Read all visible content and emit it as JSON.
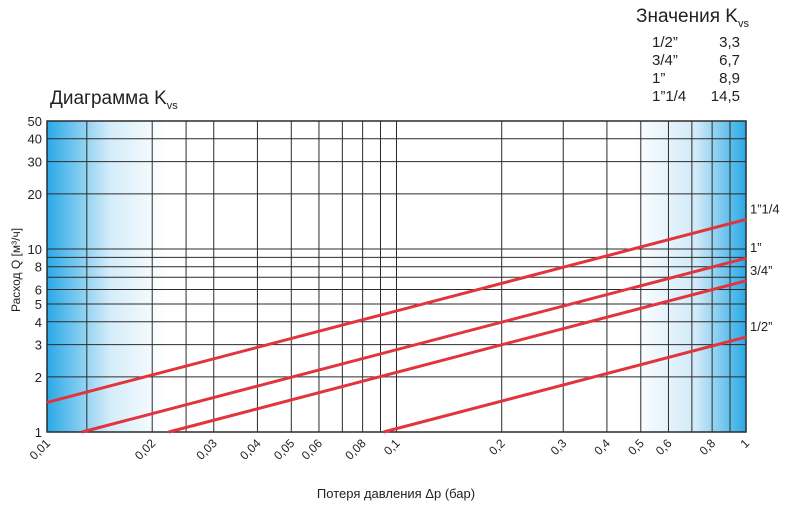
{
  "kvs_table": {
    "title": "Значения K",
    "title_sub": "vs",
    "rows": [
      {
        "size": "1/2”",
        "value": "3,3"
      },
      {
        "size": "3/4”",
        "value": "6,7"
      },
      {
        "size": "1”",
        "value": "8,9"
      },
      {
        "size": "1”1/4",
        "value": "14,5"
      }
    ]
  },
  "chart_data": {
    "type": "line",
    "title": "Диаграмма K",
    "title_sub": "vs",
    "xlabel": "Потеря давления Δp (бар)",
    "ylabel": "Расход Q [м³/ч]",
    "xscale": "log",
    "yscale": "log",
    "xlim": [
      0.01,
      1
    ],
    "ylim": [
      1,
      50
    ],
    "grid": true,
    "x_ticks": [
      {
        "v": 0.01,
        "label": "0,01"
      },
      {
        "v": 0.02,
        "label": "0,02"
      },
      {
        "v": 0.03,
        "label": "0,03"
      },
      {
        "v": 0.04,
        "label": "0,04"
      },
      {
        "v": 0.05,
        "label": "0,05"
      },
      {
        "v": 0.06,
        "label": "0,06"
      },
      {
        "v": 0.08,
        "label": "0,08"
      },
      {
        "v": 0.1,
        "label": "0,1"
      },
      {
        "v": 0.2,
        "label": "0,2"
      },
      {
        "v": 0.3,
        "label": "0,3"
      },
      {
        "v": 0.4,
        "label": "0,4"
      },
      {
        "v": 0.5,
        "label": "0,5"
      },
      {
        "v": 0.6,
        "label": "0,6"
      },
      {
        "v": 0.8,
        "label": "0,8"
      },
      {
        "v": 1,
        "label": "1"
      }
    ],
    "x_grid": [
      0.01,
      0.013,
      0.02,
      0.025,
      0.03,
      0.04,
      0.05,
      0.06,
      0.07,
      0.08,
      0.09,
      0.1,
      0.2,
      0.3,
      0.4,
      0.5,
      0.6,
      0.7,
      0.8,
      0.9,
      1
    ],
    "y_ticks": [
      {
        "v": 1,
        "label": "1"
      },
      {
        "v": 2,
        "label": "2"
      },
      {
        "v": 3,
        "label": "3"
      },
      {
        "v": 4,
        "label": "4"
      },
      {
        "v": 5,
        "label": "5"
      },
      {
        "v": 6,
        "label": "6"
      },
      {
        "v": 8,
        "label": "8"
      },
      {
        "v": 10,
        "label": "10"
      },
      {
        "v": 20,
        "label": "20"
      },
      {
        "v": 30,
        "label": "30"
      },
      {
        "v": 40,
        "label": "40"
      },
      {
        "v": 50,
        "label": "50"
      }
    ],
    "y_grid": [
      1,
      2,
      3,
      4,
      5,
      6,
      7,
      8,
      9,
      10,
      20,
      30,
      40,
      50
    ],
    "series": [
      {
        "name": "1”1/4",
        "kvs": 14.5,
        "points": [
          [
            0.01,
            1.45
          ],
          [
            1,
            14.5
          ]
        ],
        "color": "#e2343d"
      },
      {
        "name": "1”",
        "kvs": 8.9,
        "points": [
          [
            0.0126,
            1
          ],
          [
            1,
            8.9
          ]
        ],
        "color": "#e2343d"
      },
      {
        "name": "3/4”",
        "kvs": 6.7,
        "points": [
          [
            0.0223,
            1
          ],
          [
            1,
            6.7
          ]
        ],
        "color": "#e2343d"
      },
      {
        "name": "1/2”",
        "kvs": 3.3,
        "points": [
          [
            0.0918,
            1
          ],
          [
            1,
            3.3
          ]
        ],
        "color": "#e2343d"
      }
    ],
    "colors": {
      "background_edge": "#29a9e6",
      "background_center": "#ffffff",
      "grid": "#2b2b2b",
      "line": "#e2343d"
    }
  }
}
